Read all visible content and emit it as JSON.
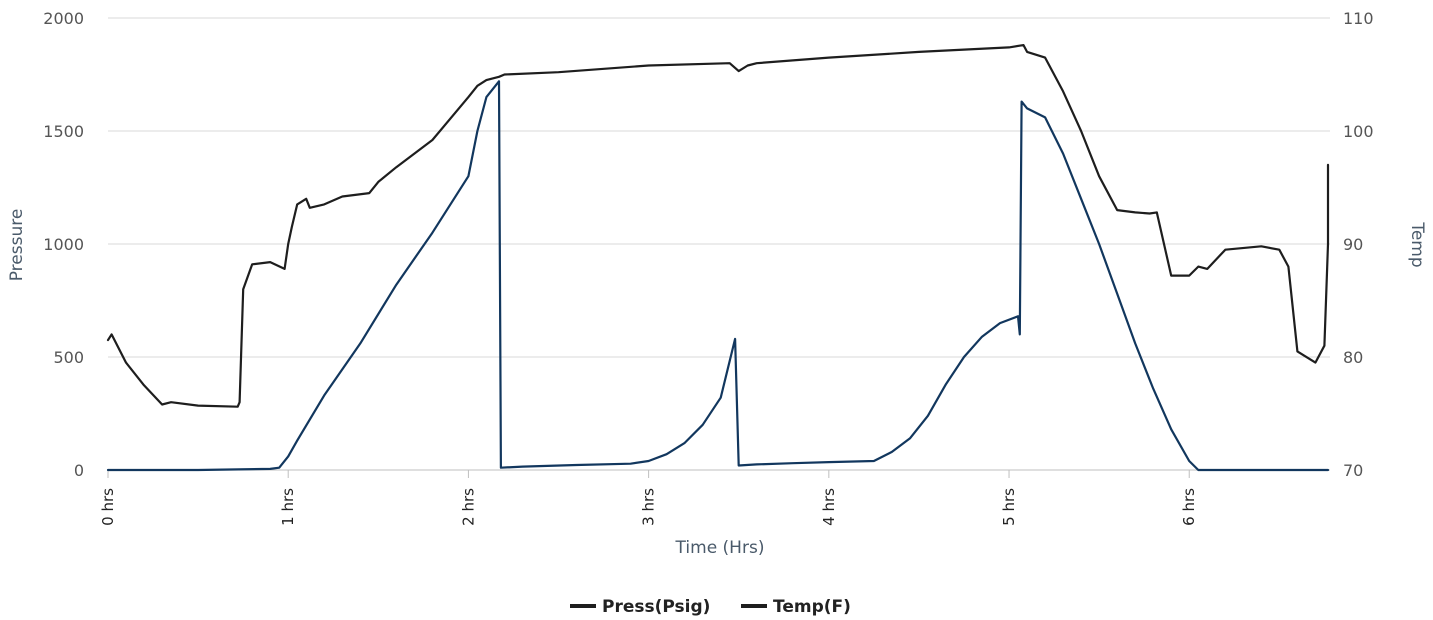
{
  "chart_data": {
    "type": "line",
    "xlabel": "Time (Hrs)",
    "ylabel_left": "Pressure",
    "ylabel_right": "Temp",
    "x_ticks": [
      {
        "value": 0,
        "label": "0 hrs"
      },
      {
        "value": 1,
        "label": "1 hrs"
      },
      {
        "value": 2,
        "label": "2 hrs"
      },
      {
        "value": 3,
        "label": "3 hrs"
      },
      {
        "value": 4,
        "label": "4 hrs"
      },
      {
        "value": 5,
        "label": "5 hrs"
      },
      {
        "value": 6,
        "label": "6 hrs"
      }
    ],
    "xlim": [
      0,
      6.77
    ],
    "ylim_left": [
      0,
      2000
    ],
    "ylim_right": [
      70,
      110
    ],
    "left_ticks": [
      "0",
      "500",
      "1000",
      "1500",
      "2000"
    ],
    "right_ticks": [
      "70",
      "80",
      "90",
      "100",
      "110"
    ],
    "grid": true,
    "legend_position": "bottom-center",
    "legend": [
      "Press(Psig)",
      "Temp(F)"
    ],
    "series": [
      {
        "name": "Press(Psig)",
        "axis": "left",
        "color": "#12375e",
        "x": [
          0,
          0.5,
          0.9,
          0.95,
          1.0,
          1.05,
          1.2,
          1.4,
          1.6,
          1.8,
          2.0,
          2.05,
          2.1,
          2.15,
          2.17,
          2.18,
          2.3,
          2.6,
          2.9,
          3.0,
          3.1,
          3.2,
          3.3,
          3.4,
          3.48,
          3.5,
          3.6,
          3.8,
          4.0,
          4.25,
          4.35,
          4.45,
          4.55,
          4.65,
          4.75,
          4.85,
          4.95,
          5.05,
          5.06,
          5.07,
          5.1,
          5.2,
          5.3,
          5.4,
          5.5,
          5.6,
          5.7,
          5.8,
          5.9,
          6.0,
          6.05,
          6.1,
          6.3,
          6.77
        ],
        "y": [
          0,
          0,
          5,
          10,
          60,
          130,
          330,
          560,
          820,
          1050,
          1300,
          1500,
          1650,
          1700,
          1720,
          10,
          15,
          22,
          28,
          40,
          70,
          120,
          200,
          320,
          580,
          20,
          25,
          30,
          35,
          40,
          80,
          140,
          240,
          380,
          500,
          590,
          650,
          680,
          600,
          1630,
          1600,
          1560,
          1400,
          1200,
          1000,
          780,
          560,
          360,
          180,
          40,
          0,
          0,
          0,
          0
        ]
      },
      {
        "name": "Temp(F)",
        "axis": "right",
        "color": "#1e1e1e",
        "x": [
          0,
          0.02,
          0.1,
          0.2,
          0.3,
          0.35,
          0.5,
          0.72,
          0.73,
          0.75,
          0.8,
          0.9,
          0.98,
          1.0,
          1.02,
          1.05,
          1.1,
          1.12,
          1.2,
          1.3,
          1.45,
          1.5,
          1.6,
          1.8,
          2.0,
          2.05,
          2.1,
          2.17,
          2.2,
          2.5,
          3.0,
          3.45,
          3.5,
          3.55,
          3.6,
          4.0,
          4.5,
          5.0,
          5.08,
          5.1,
          5.2,
          5.3,
          5.4,
          5.5,
          5.6,
          5.7,
          5.78,
          5.82,
          5.9,
          6.0,
          6.05,
          6.1,
          6.2,
          6.4,
          6.5,
          6.55,
          6.6,
          6.7,
          6.75,
          6.85,
          7.0,
          7.05,
          7.12
        ],
        "y": [
          81.5,
          82,
          79.5,
          77.5,
          75.8,
          76,
          75.7,
          75.6,
          76,
          86,
          88.2,
          88.4,
          87.8,
          90,
          91.5,
          93.5,
          94,
          93.2,
          93.5,
          94.2,
          94.5,
          95.5,
          96.8,
          99.2,
          103,
          104,
          104.5,
          104.8,
          105,
          105.2,
          105.8,
          106,
          105.3,
          105.8,
          106,
          106.5,
          107,
          107.4,
          107.6,
          107,
          106.5,
          103.5,
          100,
          96,
          93,
          92.8,
          92.7,
          92.8,
          87.2,
          87.2,
          88,
          87.8,
          89.5,
          89.8,
          89.5,
          88,
          80.5,
          79.5,
          81,
          90,
          97,
          94,
          93
        ]
      }
    ]
  }
}
